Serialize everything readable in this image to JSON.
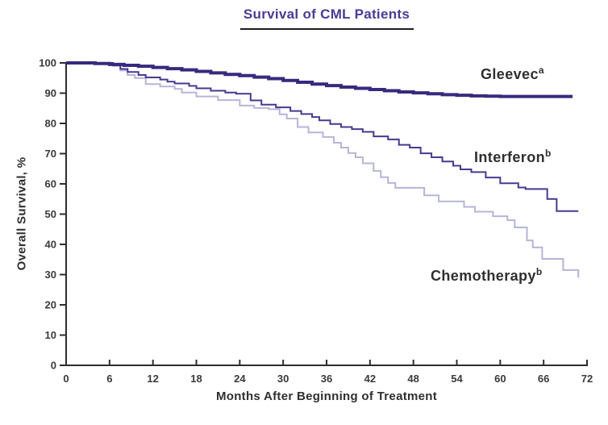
{
  "title": "Survival of CML Patients",
  "colors": {
    "title": "#4b3a96",
    "axis": "#2d2d2d",
    "tick_text": "#3a3a3a",
    "label_text": "#2f2f2f",
    "gleevec": "#372a7d",
    "interferon": "#473a90",
    "chemotherapy": "#b7b5d8",
    "background": "#ffffff"
  },
  "chart_data": {
    "type": "line",
    "subtype": "step-survival",
    "title": "Survival of CML Patients",
    "xlabel": "Months After Beginning of Treatment",
    "ylabel": "Overall Survival, %",
    "xlim": [
      0,
      72
    ],
    "ylim": [
      0,
      100
    ],
    "xticks": [
      0,
      6,
      12,
      18,
      24,
      30,
      36,
      42,
      48,
      54,
      60,
      66,
      72
    ],
    "yticks": [
      0,
      10,
      20,
      30,
      40,
      50,
      60,
      70,
      80,
      90,
      100
    ],
    "grid": false,
    "legend_position": "inline-labels-right",
    "series": [
      {
        "name": "gleevec",
        "label": "Gleevec",
        "superscript": "a",
        "color": "#372a7d",
        "line_width": 4,
        "final_value": 88.9,
        "points": [
          [
            0,
            100
          ],
          [
            4,
            99.8
          ],
          [
            6,
            99.5
          ],
          [
            8,
            99.2
          ],
          [
            10,
            98.9
          ],
          [
            12,
            98.5
          ],
          [
            14,
            98.1
          ],
          [
            16,
            97.7
          ],
          [
            18,
            97.2
          ],
          [
            20,
            96.7
          ],
          [
            22,
            96.2
          ],
          [
            24,
            95.8
          ],
          [
            26,
            95.3
          ],
          [
            28,
            94.8
          ],
          [
            30,
            94.2
          ],
          [
            32,
            93.6
          ],
          [
            34,
            93
          ],
          [
            36,
            92.5
          ],
          [
            38,
            92
          ],
          [
            40,
            91.6
          ],
          [
            42,
            91.2
          ],
          [
            44,
            90.8
          ],
          [
            46,
            90.4
          ],
          [
            48,
            90.1
          ],
          [
            50,
            89.8
          ],
          [
            52,
            89.5
          ],
          [
            54,
            89.3
          ],
          [
            56,
            89.1
          ],
          [
            58,
            89
          ],
          [
            60,
            88.9
          ],
          [
            70,
            88.9
          ]
        ]
      },
      {
        "name": "interferon",
        "label": "Interferon",
        "superscript": "b",
        "color": "#473a90",
        "line_width": 2,
        "final_value": 51,
        "points": [
          [
            0,
            100
          ],
          [
            6.5,
            99.2
          ],
          [
            7.5,
            98
          ],
          [
            8.5,
            97
          ],
          [
            10,
            96
          ],
          [
            11,
            95.2
          ],
          [
            13,
            94.5
          ],
          [
            14,
            93.8
          ],
          [
            15,
            93.2
          ],
          [
            17,
            92.4
          ],
          [
            18,
            91.6
          ],
          [
            20,
            90.8
          ],
          [
            22,
            90.2
          ],
          [
            23.5,
            89.8
          ],
          [
            25.5,
            87.6
          ],
          [
            27,
            86.2
          ],
          [
            29,
            85.3
          ],
          [
            31,
            84.1
          ],
          [
            32.5,
            83.1
          ],
          [
            34,
            82.1
          ],
          [
            35,
            81
          ],
          [
            36.5,
            79.8
          ],
          [
            38,
            78.8
          ],
          [
            39.5,
            78.1
          ],
          [
            41,
            77.2
          ],
          [
            42.5,
            75.7
          ],
          [
            44.5,
            74.7
          ],
          [
            46,
            72.9
          ],
          [
            47.5,
            72
          ],
          [
            49,
            70.1
          ],
          [
            50.5,
            68.8
          ],
          [
            52,
            67.4
          ],
          [
            53.5,
            66
          ],
          [
            54.5,
            64.8
          ],
          [
            56,
            63.9
          ],
          [
            58,
            62.1
          ],
          [
            60,
            60.2
          ],
          [
            62.5,
            58.8
          ],
          [
            63.5,
            58.3
          ],
          [
            66.5,
            55
          ],
          [
            67.8,
            51
          ],
          [
            70.8,
            51
          ]
        ]
      },
      {
        "name": "chemotherapy",
        "label": "Chemotherapy",
        "superscript": "b",
        "color": "#b7b5d8",
        "line_width": 2,
        "final_value": 29,
        "points": [
          [
            0,
            100
          ],
          [
            6.5,
            99
          ],
          [
            7.5,
            97.5
          ],
          [
            8.5,
            96
          ],
          [
            9.5,
            95
          ],
          [
            11,
            93
          ],
          [
            13,
            92.2
          ],
          [
            15,
            91.4
          ],
          [
            16,
            90.2
          ],
          [
            18,
            88.9
          ],
          [
            21,
            87.7
          ],
          [
            24,
            85.9
          ],
          [
            26,
            85.1
          ],
          [
            28,
            84.7
          ],
          [
            29.5,
            83
          ],
          [
            30.5,
            81.6
          ],
          [
            32,
            78.8
          ],
          [
            33.5,
            77
          ],
          [
            35.5,
            75.5
          ],
          [
            37,
            73.6
          ],
          [
            38,
            72
          ],
          [
            39,
            70.2
          ],
          [
            40,
            68.8
          ],
          [
            41,
            66.8
          ],
          [
            42.5,
            64.3
          ],
          [
            43.5,
            62.2
          ],
          [
            44.5,
            60.3
          ],
          [
            45.5,
            58.7
          ],
          [
            49.5,
            56.2
          ],
          [
            51.5,
            54.2
          ],
          [
            55,
            52.4
          ],
          [
            56.5,
            50.8
          ],
          [
            59,
            49.3
          ],
          [
            61,
            48
          ],
          [
            62,
            45.6
          ],
          [
            63.7,
            41.3
          ],
          [
            64.5,
            39
          ],
          [
            65.8,
            35.2
          ],
          [
            68.7,
            31.5
          ],
          [
            70.8,
            29
          ]
        ]
      }
    ]
  }
}
